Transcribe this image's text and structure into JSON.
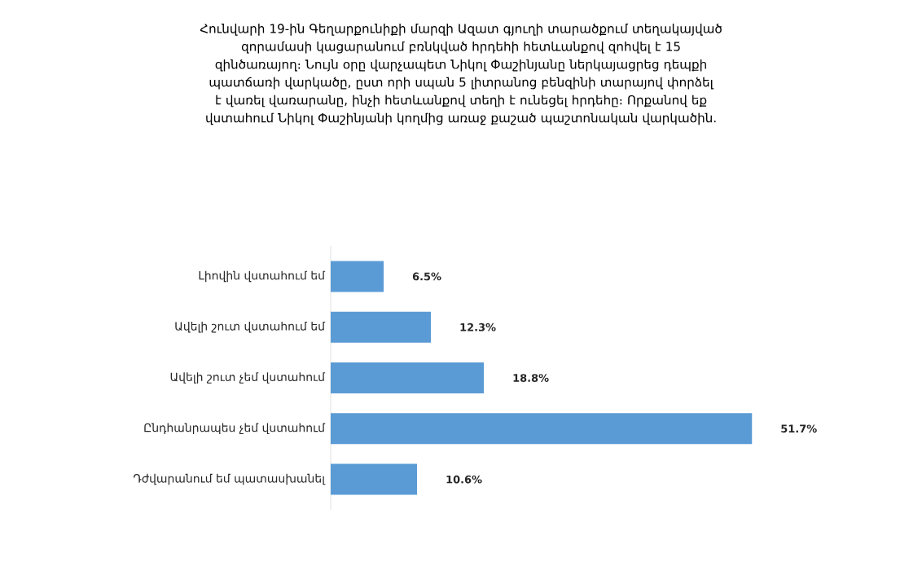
{
  "chart_data": {
    "type": "bar",
    "orientation": "horizontal",
    "title": "Հունվարի 19-ին Գեղարքունիքի մարզի Ազատ գյուղի տարածքում տեղակայված զորամասի կացարանում բռնկված հրդեհի հետևանքով զոհվել է 15 զինծառայող։ Նույն օրը վարչապետ Նիկոլ Փաշինյանը ներկայացրեց դեպքի պատճառի վարկածը, ըստ որի սպան 5 լիտրանոց բենզինի տարայով փորձել է վառել վառարանը, ինչի հետևանքով տեղի է ունեցել հրդեհը։ Որքանով եք վստահում Նիկոլ Փաշինյանի կողմից առաջ քաշած պաշտոնական վարկածին.",
    "categories": [
      "Լիովին վստահում եմ",
      "Ավելի շուտ վստահում եմ",
      "Ավելի շուտ չեմ վստահում",
      "Ընդհանրապես չեմ վստահում",
      "Դժվարանում եմ պատասխանել"
    ],
    "values": [
      6.5,
      12.3,
      18.8,
      51.7,
      10.6
    ],
    "value_labels": [
      "6.5%",
      "12.3%",
      "18.8%",
      "51.7%",
      "10.6%"
    ],
    "color": "#5b9bd5"
  }
}
